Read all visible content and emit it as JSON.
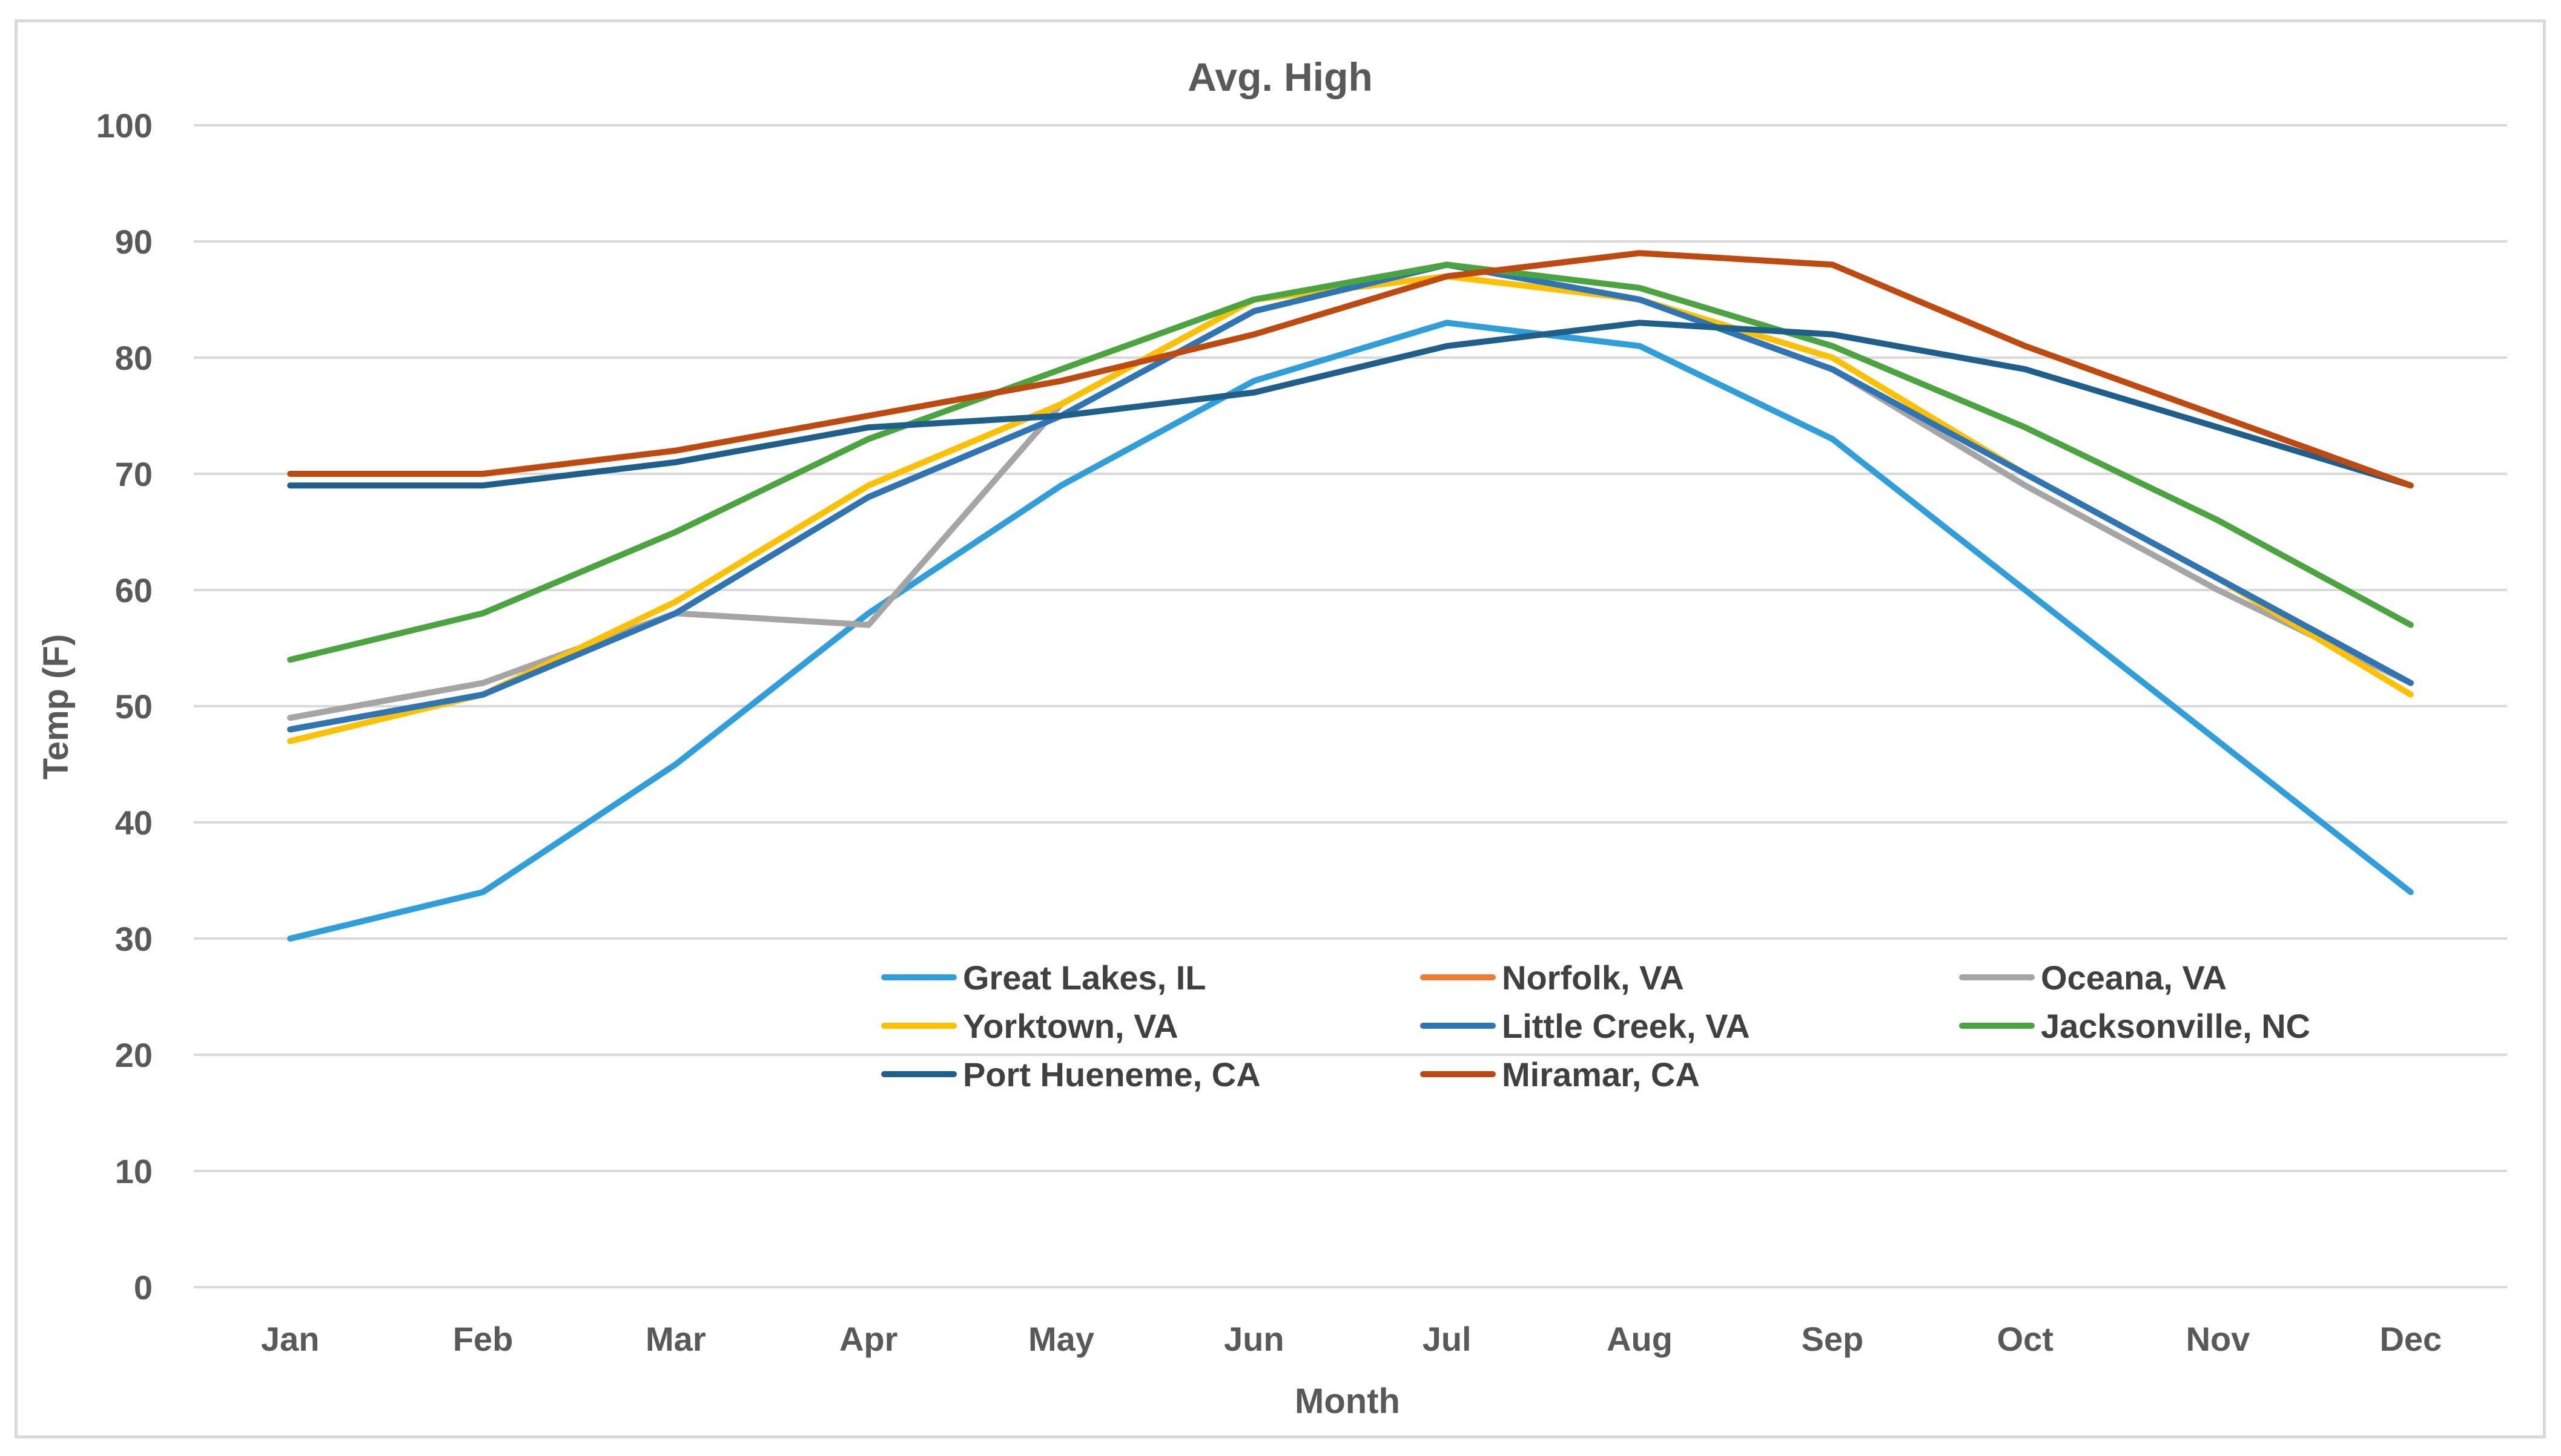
{
  "chart_data": {
    "type": "line",
    "title": "Avg. High",
    "xlabel": "Month",
    "ylabel": "Temp (F)",
    "ylim": [
      0,
      100
    ],
    "yticks": [
      0,
      10,
      20,
      30,
      40,
      50,
      60,
      70,
      80,
      90,
      100
    ],
    "grid": true,
    "legend_position": "lower-center-inside",
    "categories": [
      "Jan",
      "Feb",
      "Mar",
      "Apr",
      "May",
      "Jun",
      "Jul",
      "Aug",
      "Sep",
      "Oct",
      "Nov",
      "Dec"
    ],
    "series": [
      {
        "name": "Great Lakes, IL",
        "color": "#2e9fdb",
        "values": [
          30,
          34,
          45,
          58,
          69,
          78,
          83,
          81,
          73,
          60,
          47,
          34
        ]
      },
      {
        "name": "Norfolk, VA",
        "color": "#ed7d31",
        "values": [
          48,
          51,
          58,
          68,
          75,
          84,
          88,
          85,
          79,
          70,
          61,
          52
        ]
      },
      {
        "name": "Oceana, VA",
        "color": "#a5a5a5",
        "values": [
          49,
          52,
          58,
          57,
          76,
          85,
          88,
          85,
          79,
          69,
          60,
          52
        ]
      },
      {
        "name": "Yorktown, VA",
        "color": "#ffc000",
        "values": [
          47,
          51,
          59,
          69,
          76,
          85,
          87,
          85,
          80,
          70,
          61,
          51
        ]
      },
      {
        "name": "Little Creek, VA",
        "color": "#2e75b6",
        "values": [
          48,
          51,
          58,
          68,
          75,
          84,
          88,
          85,
          79,
          70,
          61,
          52
        ]
      },
      {
        "name": "Jacksonville, NC",
        "color": "#4aa53f",
        "values": [
          54,
          58,
          65,
          73,
          79,
          85,
          88,
          86,
          81,
          74,
          66,
          57
        ]
      },
      {
        "name": "Port Hueneme, CA",
        "color": "#1f5f8b",
        "values": [
          69,
          69,
          71,
          74,
          75,
          77,
          81,
          83,
          82,
          79,
          74,
          69
        ]
      },
      {
        "name": "Miramar, CA",
        "color": "#c0490f",
        "values": [
          70,
          70,
          72,
          75,
          78,
          82,
          87,
          89,
          88,
          81,
          75,
          69
        ]
      }
    ]
  }
}
